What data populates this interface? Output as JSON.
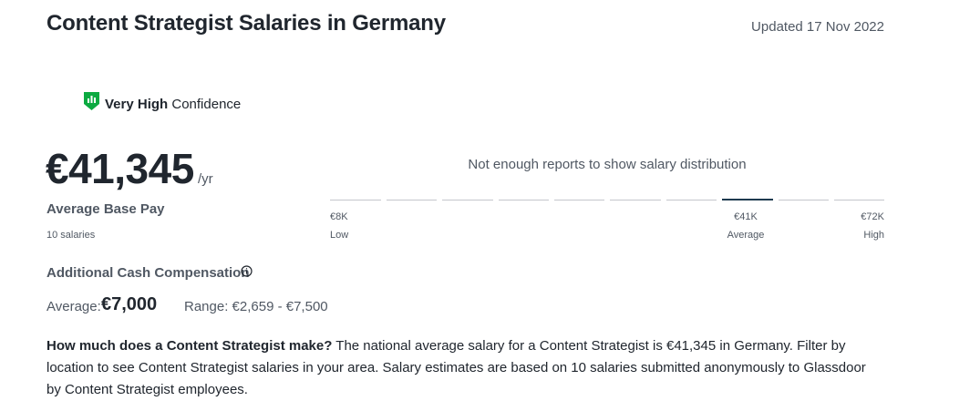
{
  "header": {
    "title": "Content Strategist Salaries in Germany",
    "updated": "Updated 17 Nov 2022"
  },
  "confidence": {
    "level": "Very High",
    "label": "Confidence"
  },
  "pay": {
    "amount": "€41,345",
    "unit": "/yr",
    "label": "Average Base Pay",
    "count": "10 salaries"
  },
  "distribution": {
    "message": "Not enough reports to show salary distribution",
    "low": {
      "value": "€8K",
      "label": "Low"
    },
    "average": {
      "value": "€41K",
      "label": "Average"
    },
    "high": {
      "value": "€72K",
      "label": "High"
    }
  },
  "additional": {
    "title": "Additional Cash Compensation",
    "average_label": "Average:",
    "average": "€7,000",
    "range": "Range: €2,659 - €7,500"
  },
  "description": {
    "question": "How much does a Content Strategist make?",
    "answer": "The national average salary for a Content Strategist is €41,345 in Germany. Filter by location to see Content Strategist salaries in your area. Salary estimates are based on 10 salaries submitted anonymously to Glassdoor by Content Strategist employees."
  }
}
